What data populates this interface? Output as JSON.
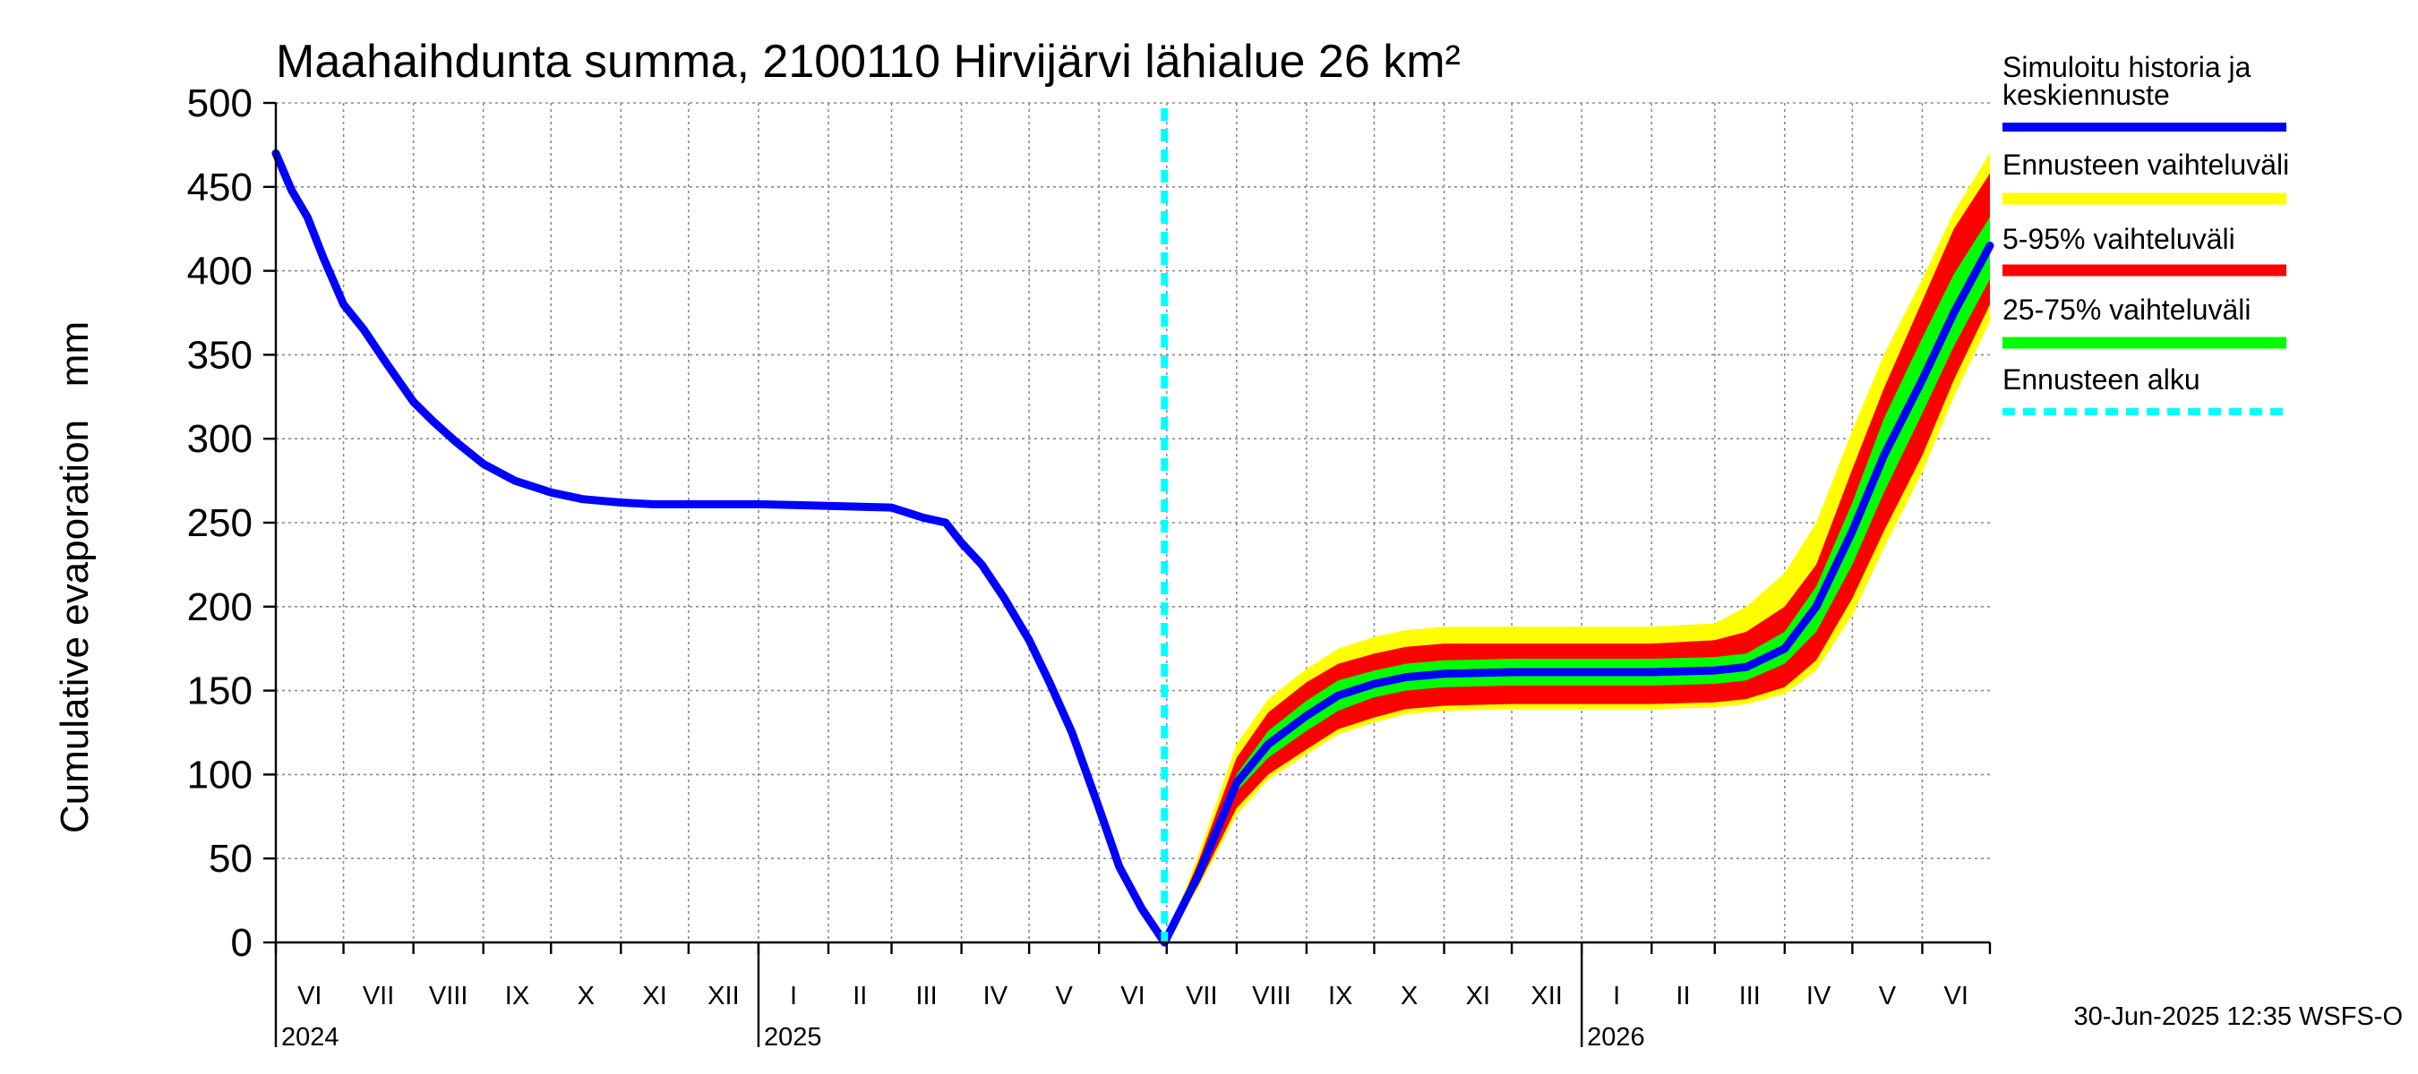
{
  "chart_data": {
    "type": "area",
    "title": "Maahaihdunta summa, 2100110 Hirvijärvi lähialue 26 km²",
    "ylabel": "Cumulative evaporation   mm",
    "xlabel": "",
    "ylim": [
      0,
      500
    ],
    "yticks": [
      0,
      50,
      100,
      150,
      200,
      250,
      300,
      350,
      400,
      450,
      500
    ],
    "grid": true,
    "legend_position": "right",
    "x_range": [
      "2024-06-01",
      "2026-07-01"
    ],
    "month_labels": [
      {
        "label": "VI",
        "month": "2024-06"
      },
      {
        "label": "VII",
        "month": "2024-07"
      },
      {
        "label": "VIII",
        "month": "2024-08"
      },
      {
        "label": "IX",
        "month": "2024-09"
      },
      {
        "label": "X",
        "month": "2024-10"
      },
      {
        "label": "XI",
        "month": "2024-11"
      },
      {
        "label": "XII",
        "month": "2024-12"
      },
      {
        "label": "I",
        "month": "2025-01"
      },
      {
        "label": "II",
        "month": "2025-02"
      },
      {
        "label": "III",
        "month": "2025-03"
      },
      {
        "label": "IV",
        "month": "2025-04"
      },
      {
        "label": "V",
        "month": "2025-05"
      },
      {
        "label": "VI",
        "month": "2025-06"
      },
      {
        "label": "VII",
        "month": "2025-07"
      },
      {
        "label": "VIII",
        "month": "2025-08"
      },
      {
        "label": "IX",
        "month": "2025-09"
      },
      {
        "label": "X",
        "month": "2025-10"
      },
      {
        "label": "XI",
        "month": "2025-11"
      },
      {
        "label": "XII",
        "month": "2025-12"
      },
      {
        "label": "I",
        "month": "2026-01"
      },
      {
        "label": "II",
        "month": "2026-02"
      },
      {
        "label": "III",
        "month": "2026-03"
      },
      {
        "label": "IV",
        "month": "2026-04"
      },
      {
        "label": "V",
        "month": "2026-05"
      },
      {
        "label": "VI",
        "month": "2026-06"
      }
    ],
    "year_labels": [
      {
        "label": "2024",
        "date": "2024-06-01"
      },
      {
        "label": "2025",
        "date": "2025-01-01"
      },
      {
        "label": "2026",
        "date": "2026-01-01"
      }
    ],
    "forecast_start": "2025-06-30",
    "history": {
      "name": "Simuloitu historia ja keskiennuste",
      "color": "#0000ff",
      "x": [
        "2024-06-01",
        "2024-06-08",
        "2024-06-15",
        "2024-06-22",
        "2024-07-01",
        "2024-07-10",
        "2024-07-20",
        "2024-08-01",
        "2024-08-10",
        "2024-08-20",
        "2024-09-01",
        "2024-09-15",
        "2024-10-01",
        "2024-10-15",
        "2024-11-01",
        "2024-11-15",
        "2024-12-01",
        "2024-12-15",
        "2025-01-01",
        "2025-02-01",
        "2025-03-01",
        "2025-03-15",
        "2025-03-25",
        "2025-04-01",
        "2025-04-10",
        "2025-04-20",
        "2025-05-01",
        "2025-05-10",
        "2025-05-20",
        "2025-06-01",
        "2025-06-10",
        "2025-06-20",
        "2025-06-30"
      ],
      "y": [
        470,
        448,
        432,
        408,
        380,
        365,
        345,
        322,
        310,
        298,
        285,
        275,
        268,
        264,
        262,
        261,
        261,
        261,
        261,
        260,
        259,
        253,
        250,
        238,
        225,
        205,
        180,
        155,
        125,
        80,
        45,
        20,
        0
      ]
    },
    "forecast": {
      "x": [
        "2025-06-30",
        "2025-07-15",
        "2025-08-01",
        "2025-08-15",
        "2025-09-01",
        "2025-09-15",
        "2025-10-01",
        "2025-10-15",
        "2025-11-01",
        "2025-12-01",
        "2026-01-01",
        "2026-02-01",
        "2026-03-01",
        "2026-03-15",
        "2026-04-01",
        "2026-04-15",
        "2026-05-01",
        "2026-05-15",
        "2026-06-01",
        "2026-06-15",
        "2026-07-01"
      ],
      "median": [
        0,
        40,
        95,
        118,
        135,
        147,
        154,
        158,
        160,
        161,
        161,
        161,
        162,
        164,
        175,
        200,
        245,
        290,
        335,
        375,
        415
      ],
      "band_25_75": [
        [
          0,
          0
        ],
        [
          38,
          42
        ],
        [
          90,
          100
        ],
        [
          110,
          126
        ],
        [
          126,
          144
        ],
        [
          138,
          156
        ],
        [
          146,
          162
        ],
        [
          150,
          166
        ],
        [
          152,
          168
        ],
        [
          153,
          169
        ],
        [
          153,
          169
        ],
        [
          153,
          169
        ],
        [
          154,
          170
        ],
        [
          156,
          172
        ],
        [
          166,
          185
        ],
        [
          185,
          212
        ],
        [
          225,
          262
        ],
        [
          268,
          312
        ],
        [
          315,
          360
        ],
        [
          355,
          398
        ],
        [
          395,
          432
        ]
      ],
      "band_5_95": [
        [
          0,
          0
        ],
        [
          34,
          48
        ],
        [
          80,
          110
        ],
        [
          100,
          137
        ],
        [
          115,
          155
        ],
        [
          127,
          166
        ],
        [
          134,
          172
        ],
        [
          139,
          176
        ],
        [
          141,
          178
        ],
        [
          142,
          178
        ],
        [
          142,
          178
        ],
        [
          142,
          178
        ],
        [
          143,
          180
        ],
        [
          145,
          185
        ],
        [
          152,
          200
        ],
        [
          168,
          225
        ],
        [
          205,
          282
        ],
        [
          245,
          330
        ],
        [
          290,
          382
        ],
        [
          335,
          425
        ],
        [
          380,
          458
        ]
      ],
      "band_full": [
        [
          0,
          0
        ],
        [
          32,
          52
        ],
        [
          76,
          118
        ],
        [
          97,
          145
        ],
        [
          112,
          163
        ],
        [
          124,
          175
        ],
        [
          131,
          182
        ],
        [
          136,
          186
        ],
        [
          138,
          188
        ],
        [
          139,
          188
        ],
        [
          139,
          188
        ],
        [
          139,
          188
        ],
        [
          140,
          190
        ],
        [
          142,
          200
        ],
        [
          148,
          220
        ],
        [
          162,
          250
        ],
        [
          195,
          305
        ],
        [
          235,
          350
        ],
        [
          280,
          395
        ],
        [
          325,
          435
        ],
        [
          370,
          470
        ]
      ]
    },
    "legend": [
      {
        "label": "Simuloitu historia ja keskiennuste",
        "color": "#0000ff",
        "style": "solid"
      },
      {
        "label": "Ennusteen vaihteluväli",
        "color": "#ffff00",
        "style": "solid"
      },
      {
        "label": "5-95% vaihteluväli",
        "color": "#ff0000",
        "style": "solid"
      },
      {
        "label": "25-75% vaihteluväli",
        "color": "#00ff00",
        "style": "solid"
      },
      {
        "label": "Ennusteen alku",
        "color": "#00ffff",
        "style": "dashed"
      }
    ],
    "footer": "30-Jun-2025 12:35 WSFS-O"
  }
}
